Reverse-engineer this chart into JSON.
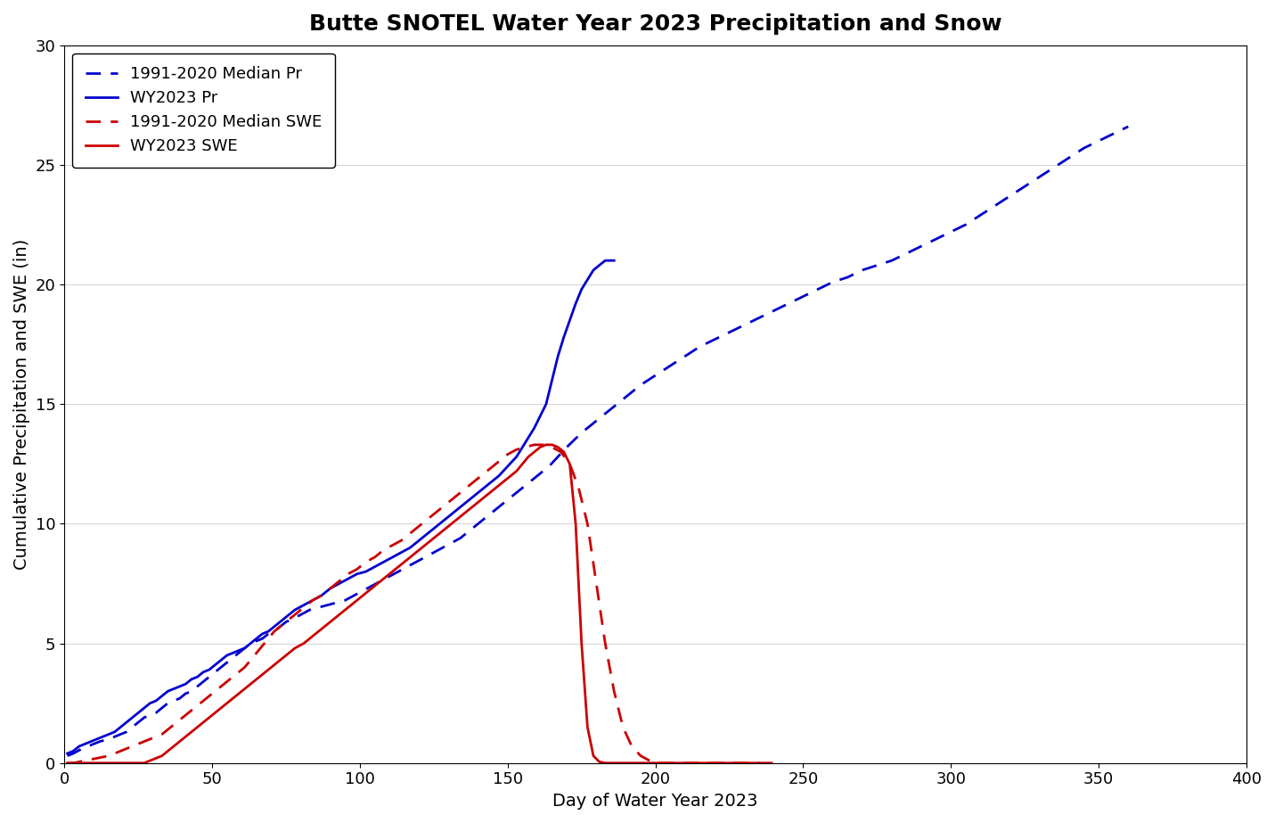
{
  "title": "Butte SNOTEL Water Year 2023 Precipitation and Snow",
  "xlabel": "Day of Water Year 2023",
  "ylabel": "Cumulative Precipitation and SWE (in)",
  "xlim": [
    0,
    400
  ],
  "ylim": [
    0,
    30
  ],
  "xticks": [
    0,
    50,
    100,
    150,
    200,
    250,
    300,
    350,
    400
  ],
  "yticks": [
    0,
    5,
    10,
    15,
    20,
    25,
    30
  ],
  "median_pr_x": [
    1,
    3,
    6,
    8,
    10,
    12,
    15,
    17,
    19,
    21,
    23,
    25,
    27,
    29,
    31,
    33,
    35,
    37,
    39,
    41,
    43,
    45,
    47,
    49,
    51,
    53,
    55,
    57,
    59,
    61,
    63,
    65,
    67,
    69,
    71,
    73,
    75,
    77,
    80,
    83,
    86,
    89,
    92,
    95,
    98,
    101,
    104,
    107,
    110,
    113,
    116,
    119,
    122,
    125,
    128,
    131,
    134,
    137,
    140,
    143,
    146,
    149,
    152,
    155,
    158,
    161,
    164,
    167,
    170,
    175,
    180,
    185,
    190,
    195,
    200,
    205,
    210,
    215,
    220,
    225,
    230,
    235,
    240,
    245,
    250,
    255,
    260,
    265,
    270,
    275,
    280,
    285,
    290,
    295,
    300,
    305,
    310,
    315,
    320,
    325,
    330,
    335,
    340,
    345,
    350,
    355,
    360
  ],
  "median_pr_y": [
    0.3,
    0.4,
    0.6,
    0.7,
    0.8,
    0.9,
    1.0,
    1.1,
    1.2,
    1.3,
    1.5,
    1.7,
    1.9,
    2.0,
    2.1,
    2.3,
    2.5,
    2.6,
    2.7,
    2.9,
    3.0,
    3.2,
    3.4,
    3.6,
    3.8,
    4.0,
    4.2,
    4.4,
    4.6,
    4.8,
    5.0,
    5.1,
    5.2,
    5.4,
    5.5,
    5.7,
    5.9,
    6.0,
    6.2,
    6.4,
    6.5,
    6.6,
    6.7,
    6.8,
    7.0,
    7.2,
    7.4,
    7.6,
    7.8,
    8.0,
    8.2,
    8.4,
    8.6,
    8.8,
    9.0,
    9.2,
    9.4,
    9.7,
    10.0,
    10.3,
    10.6,
    10.9,
    11.2,
    11.5,
    11.8,
    12.1,
    12.4,
    12.8,
    13.2,
    13.8,
    14.3,
    14.8,
    15.3,
    15.8,
    16.2,
    16.6,
    17.0,
    17.4,
    17.7,
    18.0,
    18.3,
    18.6,
    18.9,
    19.2,
    19.5,
    19.8,
    20.1,
    20.3,
    20.6,
    20.8,
    21.0,
    21.3,
    21.6,
    21.9,
    22.2,
    22.5,
    22.9,
    23.3,
    23.7,
    24.1,
    24.5,
    24.9,
    25.3,
    25.7,
    26.0,
    26.3,
    26.6
  ],
  "wy2023_pr_x": [
    1,
    3,
    5,
    7,
    9,
    11,
    13,
    15,
    17,
    19,
    21,
    23,
    25,
    27,
    29,
    31,
    33,
    35,
    37,
    39,
    41,
    43,
    45,
    47,
    49,
    51,
    53,
    55,
    57,
    59,
    61,
    63,
    65,
    67,
    69,
    71,
    73,
    75,
    78,
    81,
    84,
    87,
    90,
    93,
    96,
    99,
    102,
    105,
    108,
    111,
    114,
    117,
    120,
    123,
    126,
    129,
    132,
    135,
    138,
    141,
    144,
    147,
    150,
    153,
    155,
    157,
    159,
    161,
    163,
    165,
    167,
    169,
    171,
    173,
    175,
    177,
    179,
    181,
    183,
    185,
    186
  ],
  "wy2023_pr_y": [
    0.4,
    0.5,
    0.7,
    0.8,
    0.9,
    1.0,
    1.1,
    1.2,
    1.3,
    1.5,
    1.7,
    1.9,
    2.1,
    2.3,
    2.5,
    2.6,
    2.8,
    3.0,
    3.1,
    3.2,
    3.3,
    3.5,
    3.6,
    3.8,
    3.9,
    4.1,
    4.3,
    4.5,
    4.6,
    4.7,
    4.8,
    5.0,
    5.2,
    5.4,
    5.5,
    5.7,
    5.9,
    6.1,
    6.4,
    6.6,
    6.8,
    7.0,
    7.3,
    7.5,
    7.7,
    7.9,
    8.0,
    8.2,
    8.4,
    8.6,
    8.8,
    9.0,
    9.3,
    9.6,
    9.9,
    10.2,
    10.5,
    10.8,
    11.1,
    11.4,
    11.7,
    12.0,
    12.4,
    12.8,
    13.2,
    13.6,
    14.0,
    14.5,
    15.0,
    16.0,
    17.0,
    17.8,
    18.5,
    19.2,
    19.8,
    20.2,
    20.6,
    20.8,
    21.0,
    21.0,
    21.0
  ],
  "median_swe_x": [
    1,
    3,
    5,
    7,
    9,
    11,
    13,
    15,
    17,
    19,
    21,
    23,
    25,
    27,
    29,
    31,
    33,
    35,
    37,
    39,
    41,
    43,
    45,
    47,
    49,
    51,
    53,
    55,
    57,
    59,
    61,
    63,
    65,
    67,
    69,
    71,
    73,
    75,
    78,
    81,
    84,
    87,
    90,
    93,
    96,
    99,
    102,
    105,
    108,
    111,
    114,
    117,
    120,
    123,
    126,
    129,
    132,
    135,
    138,
    141,
    144,
    147,
    150,
    153,
    156,
    159,
    162,
    165,
    168,
    171,
    174,
    177,
    180,
    183,
    186,
    189,
    192,
    195,
    198,
    200,
    205,
    210,
    215,
    218,
    221,
    224,
    227,
    230,
    235,
    240
  ],
  "median_swe_y": [
    0.0,
    0.0,
    0.05,
    0.1,
    0.15,
    0.2,
    0.25,
    0.3,
    0.4,
    0.5,
    0.6,
    0.7,
    0.8,
    0.9,
    1.0,
    1.1,
    1.2,
    1.4,
    1.6,
    1.8,
    2.0,
    2.2,
    2.4,
    2.6,
    2.8,
    3.0,
    3.2,
    3.4,
    3.6,
    3.8,
    4.0,
    4.3,
    4.6,
    4.9,
    5.2,
    5.5,
    5.7,
    5.9,
    6.2,
    6.5,
    6.8,
    7.0,
    7.3,
    7.6,
    7.9,
    8.1,
    8.4,
    8.6,
    8.9,
    9.1,
    9.3,
    9.6,
    9.9,
    10.2,
    10.5,
    10.8,
    11.1,
    11.4,
    11.7,
    12.0,
    12.3,
    12.6,
    12.9,
    13.1,
    13.2,
    13.3,
    13.3,
    13.2,
    13.0,
    12.5,
    11.5,
    10.0,
    7.5,
    5.0,
    3.0,
    1.5,
    0.7,
    0.3,
    0.1,
    0.0,
    0.0,
    0.0,
    0.0,
    0.0,
    0.0,
    0.0,
    0.0,
    0.0,
    0.0,
    0.0
  ],
  "wy2023_swe_x": [
    1,
    3,
    5,
    7,
    9,
    11,
    13,
    15,
    17,
    19,
    21,
    23,
    25,
    27,
    29,
    31,
    33,
    35,
    37,
    39,
    41,
    43,
    45,
    47,
    49,
    51,
    53,
    55,
    57,
    59,
    61,
    63,
    65,
    67,
    69,
    71,
    73,
    75,
    78,
    81,
    84,
    87,
    90,
    93,
    96,
    99,
    102,
    105,
    108,
    111,
    114,
    117,
    120,
    123,
    126,
    129,
    132,
    135,
    138,
    141,
    144,
    147,
    150,
    153,
    155,
    157,
    159,
    161,
    163,
    165,
    167,
    169,
    171,
    173,
    175,
    177,
    179,
    181,
    183,
    185,
    187,
    190,
    195,
    200,
    205,
    210,
    215,
    220,
    225,
    230,
    235
  ],
  "wy2023_swe_y": [
    0.0,
    0.0,
    0.0,
    0.0,
    0.0,
    0.0,
    0.0,
    0.0,
    0.0,
    0.0,
    0.0,
    0.0,
    0.0,
    0.0,
    0.1,
    0.2,
    0.3,
    0.5,
    0.7,
    0.9,
    1.1,
    1.3,
    1.5,
    1.7,
    1.9,
    2.1,
    2.3,
    2.5,
    2.7,
    2.9,
    3.1,
    3.3,
    3.5,
    3.7,
    3.9,
    4.1,
    4.3,
    4.5,
    4.8,
    5.0,
    5.3,
    5.6,
    5.9,
    6.2,
    6.5,
    6.8,
    7.1,
    7.4,
    7.7,
    8.0,
    8.3,
    8.6,
    8.9,
    9.2,
    9.5,
    9.8,
    10.1,
    10.4,
    10.7,
    11.0,
    11.3,
    11.6,
    11.9,
    12.2,
    12.5,
    12.8,
    13.0,
    13.2,
    13.3,
    13.3,
    13.2,
    13.0,
    12.5,
    10.0,
    5.0,
    1.5,
    0.3,
    0.05,
    0.0,
    0.0,
    0.0,
    0.0,
    0.0,
    0.0,
    0.0,
    0.0,
    0.0,
    0.0,
    0.0,
    0.0,
    0.0
  ],
  "color_blue": "#0000cd",
  "color_red": "#cc0000",
  "linewidth": 2.0,
  "title_fontsize": 18,
  "label_fontsize": 14,
  "tick_fontsize": 13,
  "legend_fontsize": 13,
  "legend_labels": [
    "1991-2020 Median Pr",
    "WY2023 Pr",
    "1991-2020 Median SWE",
    "WY2023 SWE"
  ]
}
